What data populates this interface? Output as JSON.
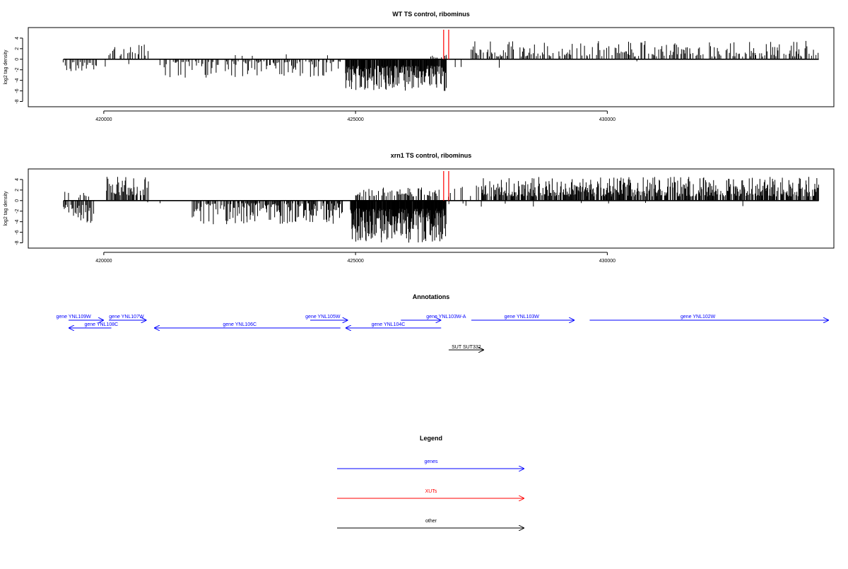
{
  "chart_data": [
    {
      "type": "bar",
      "title": "WT TS control, ribominus",
      "ylabel": "log2 tag density",
      "xlabel": "",
      "xlim": [
        418500,
        434500
      ],
      "ylim": [
        -9,
        6
      ],
      "yticks": [
        -8,
        -6,
        -4,
        -2,
        0,
        2,
        4
      ],
      "ytick_labels": [
        "-8",
        "-6",
        "-4",
        "-2",
        "0",
        "2",
        "4"
      ],
      "xticks": [
        420000,
        425000,
        430000
      ],
      "xtick_labels": [
        "420000",
        "425000",
        "430000"
      ],
      "baseline": [
        419200,
        434200
      ],
      "marker_color": "#ff0000",
      "markers": [
        426750,
        426850
      ],
      "segments": [
        {
          "start": 419200,
          "end": 419900,
          "step": 30,
          "mode": "neg",
          "lo": 0.5,
          "hi": 2.5,
          "density": 0.7
        },
        {
          "start": 419950,
          "end": 420100,
          "step": 40,
          "mode": "neg",
          "lo": 0.5,
          "hi": 2.2,
          "density": 0.4
        },
        {
          "start": 420100,
          "end": 420900,
          "step": 25,
          "mode": "pos",
          "lo": 0.6,
          "hi": 3.0,
          "density": 0.5
        },
        {
          "start": 420500,
          "end": 421000,
          "step": 60,
          "mode": "neg",
          "lo": 0.3,
          "hi": 2.6,
          "density": 0.3
        },
        {
          "start": 421000,
          "end": 422000,
          "step": 60,
          "mode": "neg",
          "lo": 0.3,
          "hi": 1.6,
          "density": 0.25
        },
        {
          "start": 421200,
          "end": 424700,
          "step": 22,
          "mode": "neg",
          "lo": 0.4,
          "hi": 3.5,
          "density": 0.6
        },
        {
          "start": 422000,
          "end": 424500,
          "step": 200,
          "mode": "pos",
          "lo": 0.4,
          "hi": 1.0,
          "density": 0.2
        },
        {
          "start": 424800,
          "end": 426800,
          "step": 10,
          "mode": "neg",
          "lo": 1.2,
          "hi": 6.0,
          "density": 0.95
        },
        {
          "start": 426500,
          "end": 426800,
          "step": 30,
          "mode": "pos",
          "lo": 0.3,
          "hi": 1.0,
          "density": 0.4
        },
        {
          "start": 426850,
          "end": 427300,
          "step": 60,
          "mode": "neg",
          "lo": 0.4,
          "hi": 1.5,
          "density": 0.3
        },
        {
          "start": 427300,
          "end": 434200,
          "step": 22,
          "mode": "pos",
          "lo": 0.5,
          "hi": 3.5,
          "density": 0.62
        },
        {
          "start": 427300,
          "end": 434200,
          "step": 300,
          "mode": "neg",
          "lo": 0.3,
          "hi": 2.0,
          "density": 0.15
        }
      ]
    },
    {
      "type": "bar",
      "title": "xrn1 TS control, ribominus",
      "ylabel": "log2 tag density",
      "xlabel": "",
      "xlim": [
        418500,
        434500
      ],
      "ylim": [
        -9,
        6
      ],
      "yticks": [
        -8,
        -6,
        -4,
        -2,
        0,
        2,
        4
      ],
      "ytick_labels": [
        "-8",
        "-6",
        "-4",
        "-2",
        "0",
        "2",
        "4"
      ],
      "xticks": [
        420000,
        425000,
        430000
      ],
      "xtick_labels": [
        "420000",
        "425000",
        "430000"
      ],
      "baseline": [
        419200,
        434200
      ],
      "marker_color": "#ff0000",
      "markers": [
        426750,
        426850
      ],
      "segments": [
        {
          "start": 419200,
          "end": 419700,
          "step": 25,
          "mode": "pos",
          "lo": 0.5,
          "hi": 2.2,
          "density": 0.4
        },
        {
          "start": 419200,
          "end": 419800,
          "step": 18,
          "mode": "neg",
          "lo": 0.8,
          "hi": 4.5,
          "density": 0.8
        },
        {
          "start": 420050,
          "end": 420900,
          "step": 15,
          "mode": "pos",
          "lo": 1.0,
          "hi": 4.5,
          "density": 0.75
        },
        {
          "start": 420800,
          "end": 421200,
          "step": 40,
          "mode": "neg",
          "lo": 0.3,
          "hi": 1.0,
          "density": 0.3
        },
        {
          "start": 421700,
          "end": 424800,
          "step": 14,
          "mode": "neg",
          "lo": 0.5,
          "hi": 4.5,
          "density": 0.7
        },
        {
          "start": 424900,
          "end": 426800,
          "step": 8,
          "mode": "neg",
          "lo": 1.5,
          "hi": 8.0,
          "density": 0.97
        },
        {
          "start": 425000,
          "end": 426700,
          "step": 18,
          "mode": "pos",
          "lo": 0.8,
          "hi": 2.5,
          "density": 0.6
        },
        {
          "start": 426850,
          "end": 427500,
          "step": 40,
          "mode": "pos",
          "lo": 0.5,
          "hi": 3.0,
          "density": 0.4
        },
        {
          "start": 426850,
          "end": 427500,
          "step": 60,
          "mode": "neg",
          "lo": 0.3,
          "hi": 1.5,
          "density": 0.3
        },
        {
          "start": 427500,
          "end": 434200,
          "step": 12,
          "mode": "pos",
          "lo": 0.8,
          "hi": 4.5,
          "density": 0.82
        },
        {
          "start": 427500,
          "end": 434200,
          "step": 250,
          "mode": "neg",
          "lo": 0.3,
          "hi": 1.6,
          "density": 0.2
        }
      ]
    }
  ],
  "annotations": {
    "title": "Annotations",
    "xlim": [
      418500,
      434500
    ],
    "genes": [
      {
        "label": "gene YNL109W",
        "start": 419300,
        "end": 420000,
        "strand": "+",
        "row": 0,
        "label_pos": 419400
      },
      {
        "label": "gene YNL108C",
        "start": 419300,
        "end": 420150,
        "strand": "-",
        "row": 1,
        "label_pos": 419950
      },
      {
        "label": "gene YNL107W",
        "start": 420100,
        "end": 420850,
        "strand": "+",
        "row": 0,
        "label_pos": 420450
      },
      {
        "label": "gene YNL106C",
        "start": 421000,
        "end": 424700,
        "strand": "-",
        "row": 1,
        "label_pos": 422700
      },
      {
        "label": "gene YNL105W",
        "start": 424100,
        "end": 424850,
        "strand": "+",
        "row": 0,
        "label_pos": 424350
      },
      {
        "label": "gene YNL104C",
        "start": 424800,
        "end": 426700,
        "strand": "-",
        "row": 1,
        "label_pos": 425650
      },
      {
        "label": "gene YNL103W-A",
        "start": 425900,
        "end": 426700,
        "strand": "+",
        "row": 0,
        "label_pos": 426800
      },
      {
        "label": "gene YNL103W",
        "start": 427300,
        "end": 429350,
        "strand": "+",
        "row": 0,
        "label_pos": 428300
      },
      {
        "label": "gene YNL102W",
        "start": 429650,
        "end": 434400,
        "strand": "+",
        "row": 0,
        "label_pos": 431800
      }
    ],
    "others": [
      {
        "label": "SUT SUT332",
        "start": 426850,
        "end": 427550,
        "strand": "+",
        "label_pos": 427200
      }
    ]
  },
  "legend": {
    "title": "Legend",
    "items": [
      {
        "label": "genes",
        "color": "#0000ff"
      },
      {
        "label": "XUTs",
        "color": "#ff0000"
      },
      {
        "label": "other",
        "color": "#000000"
      }
    ]
  },
  "colors": {
    "bars": "#000000",
    "genes": "#0000ff",
    "xuts": "#ff0000",
    "other": "#000000"
  }
}
